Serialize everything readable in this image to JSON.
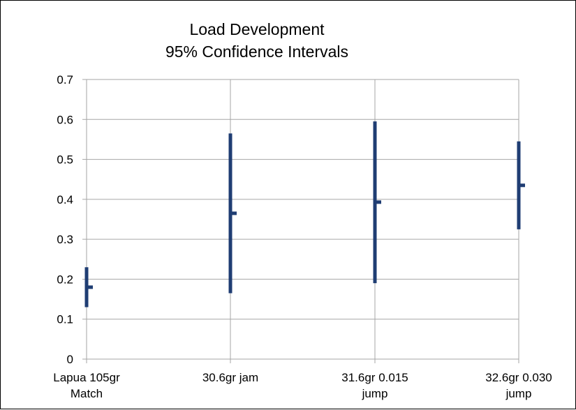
{
  "chart_data": {
    "type": "stock",
    "title": [
      "Load Development",
      "95% Confidence Intervals"
    ],
    "ylim": [
      0,
      0.7
    ],
    "yticks": [
      "0",
      "0.1",
      "0.2",
      "0.3",
      "0.4",
      "0.5",
      "0.6",
      "0.7"
    ],
    "grid": true,
    "legend": "none",
    "color": "#1f3d73",
    "categories": [
      [
        "Lapua 105gr",
        "Match"
      ],
      [
        "30.6gr jam"
      ],
      [
        "31.6gr 0.015",
        "jump"
      ],
      [
        "32.6gr 0.030",
        "jump"
      ]
    ],
    "intervals": [
      {
        "low": 0.13,
        "high": 0.23,
        "mean": 0.18
      },
      {
        "low": 0.165,
        "high": 0.565,
        "mean": 0.365
      },
      {
        "low": 0.19,
        "high": 0.595,
        "mean": 0.393
      },
      {
        "low": 0.325,
        "high": 0.545,
        "mean": 0.435
      }
    ]
  }
}
